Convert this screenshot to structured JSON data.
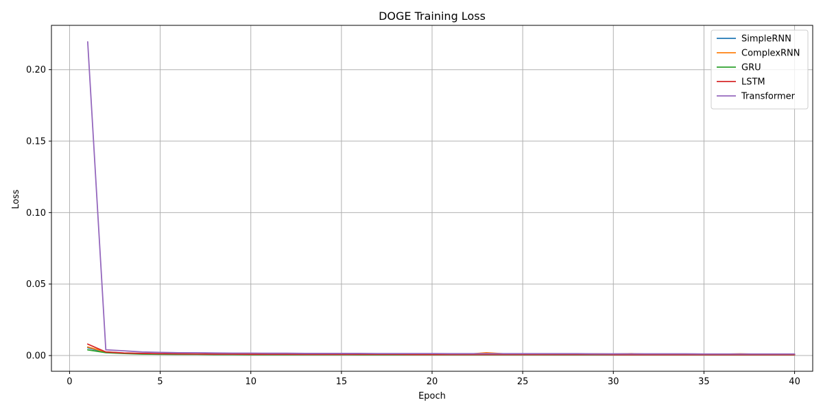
{
  "chart_data": {
    "type": "line",
    "title": "DOGE Training Loss",
    "xlabel": "Epoch",
    "ylabel": "Loss",
    "xlim": [
      -1,
      41
    ],
    "ylim": [
      -0.011,
      0.231
    ],
    "xticks": [
      0,
      5,
      10,
      15,
      20,
      25,
      30,
      35,
      40
    ],
    "xtick_labels": [
      "0",
      "5",
      "10",
      "15",
      "20",
      "25",
      "30",
      "35",
      "40"
    ],
    "yticks": [
      0.0,
      0.05,
      0.1,
      0.15,
      0.2
    ],
    "ytick_labels": [
      "0.00",
      "0.05",
      "0.10",
      "0.15",
      "0.20"
    ],
    "grid": true,
    "legend_position": "top-right",
    "x": [
      1,
      2,
      3,
      4,
      5,
      6,
      7,
      8,
      9,
      10,
      11,
      12,
      13,
      14,
      15,
      16,
      17,
      18,
      19,
      20,
      21,
      22,
      23,
      24,
      25,
      26,
      27,
      28,
      29,
      30,
      31,
      32,
      33,
      34,
      35,
      36,
      37,
      38,
      39,
      40
    ],
    "series": [
      {
        "name": "SimpleRNN",
        "color": "#1f77b4",
        "values": [
          0.0055,
          0.0022,
          0.0016,
          0.0013,
          0.0012,
          0.0011,
          0.001,
          0.001,
          0.0009,
          0.0009,
          0.0009,
          0.0009,
          0.0008,
          0.0008,
          0.0008,
          0.0008,
          0.0008,
          0.0008,
          0.0007,
          0.0007,
          0.0007,
          0.0007,
          0.0007,
          0.0007,
          0.0007,
          0.0007,
          0.0006,
          0.0006,
          0.0006,
          0.0006,
          0.0006,
          0.0006,
          0.0006,
          0.0006,
          0.0006,
          0.0006,
          0.0006,
          0.0006,
          0.0006,
          0.0006
        ]
      },
      {
        "name": "ComplexRNN",
        "color": "#ff7f0e",
        "values": [
          0.006,
          0.0025,
          0.0017,
          0.0014,
          0.0012,
          0.0011,
          0.001,
          0.001,
          0.001,
          0.0009,
          0.0009,
          0.001,
          0.0009,
          0.0009,
          0.001,
          0.0009,
          0.0009,
          0.001,
          0.0009,
          0.0009,
          0.0009,
          0.001,
          0.002,
          0.0012,
          0.0011,
          0.001,
          0.0009,
          0.0009,
          0.0012,
          0.001,
          0.0013,
          0.0009,
          0.0009,
          0.0009,
          0.0008,
          0.0009,
          0.0012,
          0.0009,
          0.0008,
          0.0008
        ]
      },
      {
        "name": "GRU",
        "color": "#2ca02c",
        "values": [
          0.004,
          0.002,
          0.0014,
          0.001,
          0.0009,
          0.0008,
          0.0008,
          0.0007,
          0.0007,
          0.0006,
          0.0006,
          0.0006,
          0.0006,
          0.0006,
          0.0006,
          0.0005,
          0.0005,
          0.0005,
          0.0005,
          0.0005,
          0.0005,
          0.0005,
          0.0005,
          0.0005,
          0.0005,
          0.0005,
          0.0005,
          0.0005,
          0.0005,
          0.0005,
          0.0005,
          0.0005,
          0.0005,
          0.0005,
          0.0005,
          0.0005,
          0.0005,
          0.0005,
          0.0005,
          0.0005
        ]
      },
      {
        "name": "LSTM",
        "color": "#d62728",
        "values": [
          0.008,
          0.0025,
          0.0018,
          0.0015,
          0.0013,
          0.0012,
          0.0011,
          0.001,
          0.001,
          0.0009,
          0.0009,
          0.0009,
          0.0008,
          0.0008,
          0.0008,
          0.0008,
          0.0008,
          0.0008,
          0.0007,
          0.0007,
          0.0007,
          0.0007,
          0.0007,
          0.0007,
          0.0007,
          0.0007,
          0.0007,
          0.0007,
          0.0007,
          0.0006,
          0.0006,
          0.0006,
          0.0006,
          0.0006,
          0.0006,
          0.0006,
          0.0006,
          0.0006,
          0.0006,
          0.0006
        ]
      },
      {
        "name": "Transformer",
        "color": "#9467bd",
        "values": [
          0.2195,
          0.004,
          0.0033,
          0.0025,
          0.0022,
          0.002,
          0.002,
          0.0018,
          0.0017,
          0.0017,
          0.0016,
          0.0016,
          0.0015,
          0.0015,
          0.0015,
          0.0015,
          0.0014,
          0.0014,
          0.0014,
          0.0014,
          0.0013,
          0.0013,
          0.0013,
          0.0013,
          0.0013,
          0.0013,
          0.0013,
          0.0013,
          0.0012,
          0.0012,
          0.0012,
          0.0012,
          0.0012,
          0.0012,
          0.0011,
          0.0011,
          0.0011,
          0.0011,
          0.0011,
          0.0011
        ]
      }
    ]
  }
}
